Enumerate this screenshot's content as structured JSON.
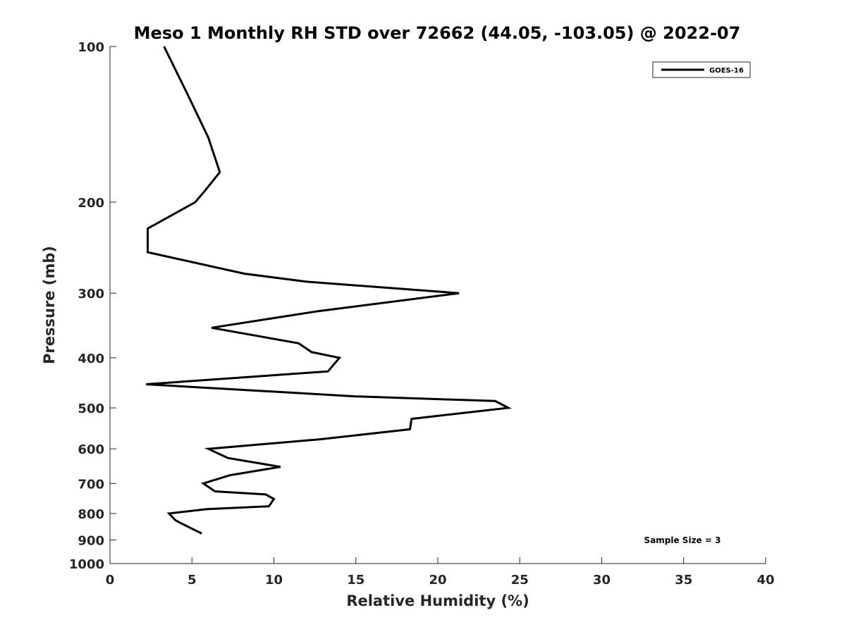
{
  "chart_data": {
    "type": "line",
    "title": "Meso 1 Monthly RH STD over 72662 (44.05, -103.05) @ 2022-07",
    "xlabel": "Relative Humidity (%)",
    "ylabel": "Pressure (mb)",
    "xlim": [
      0,
      40
    ],
    "ylim": [
      100,
      1000
    ],
    "y_scale": "log",
    "y_reversed": true,
    "grid": false,
    "legend_position": "top-right",
    "x_ticks": [
      "0",
      "5",
      "10",
      "15",
      "20",
      "25",
      "30",
      "35",
      "40"
    ],
    "y_ticks": [
      "100",
      "200",
      "300",
      "400",
      "500",
      "600",
      "700",
      "800",
      "900",
      "1000"
    ],
    "series": [
      {
        "name": "GOES-16",
        "color": "#000000",
        "points": [
          [
            3.3,
            100
          ],
          [
            4.8,
            125
          ],
          [
            6.0,
            150
          ],
          [
            6.7,
            175
          ],
          [
            5.8,
            190
          ],
          [
            5.2,
            200
          ],
          [
            2.3,
            225
          ],
          [
            2.3,
            250
          ],
          [
            8.2,
            275
          ],
          [
            12.0,
            285
          ],
          [
            21.3,
            300
          ],
          [
            12.7,
            325
          ],
          [
            6.2,
            350
          ],
          [
            11.5,
            375
          ],
          [
            12.3,
            390
          ],
          [
            14.0,
            400
          ],
          [
            13.3,
            425
          ],
          [
            2.2,
            450
          ],
          [
            15.0,
            475
          ],
          [
            23.5,
            485
          ],
          [
            24.3,
            500
          ],
          [
            18.4,
            525
          ],
          [
            18.3,
            550
          ],
          [
            12.8,
            575
          ],
          [
            6.0,
            600
          ],
          [
            7.2,
            625
          ],
          [
            10.4,
            650
          ],
          [
            7.3,
            675
          ],
          [
            5.7,
            700
          ],
          [
            6.4,
            725
          ],
          [
            9.5,
            735
          ],
          [
            10.0,
            750
          ],
          [
            9.7,
            775
          ],
          [
            5.9,
            785
          ],
          [
            3.6,
            800
          ],
          [
            4.0,
            825
          ],
          [
            4.8,
            850
          ],
          [
            5.6,
            875
          ]
        ]
      }
    ],
    "annotations": [
      "Sample Size = 3"
    ]
  }
}
